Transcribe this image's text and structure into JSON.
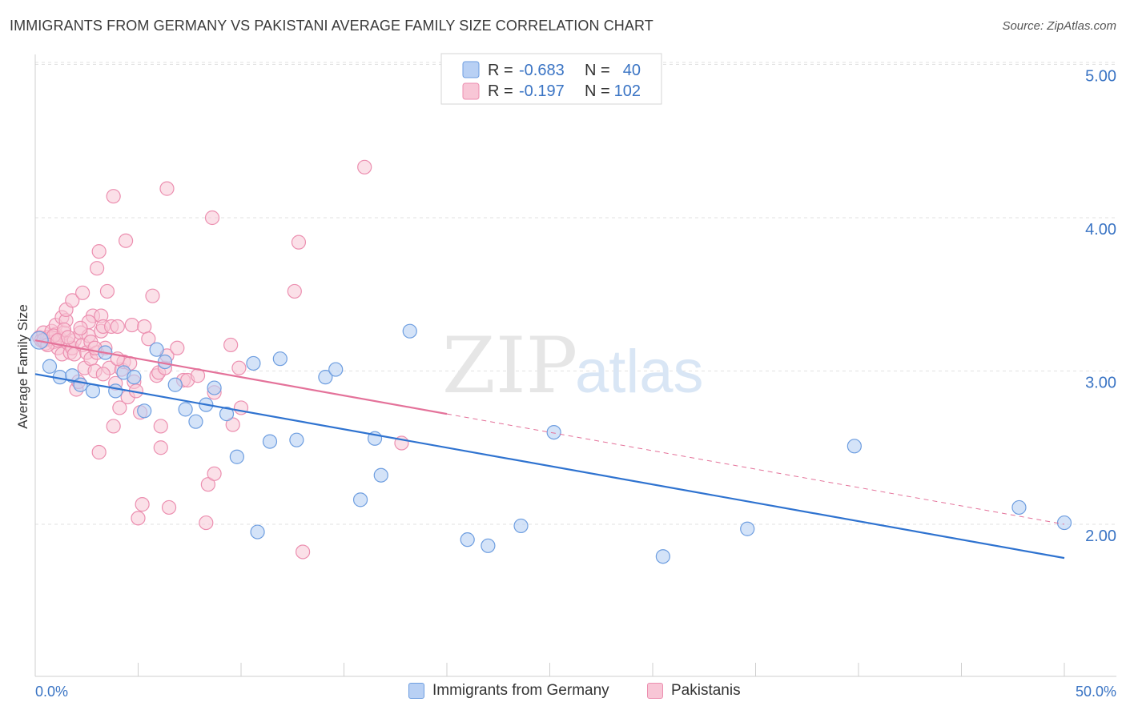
{
  "title": "IMMIGRANTS FROM GERMANY VS PAKISTANI AVERAGE FAMILY SIZE CORRELATION CHART",
  "source": "Source: ZipAtlas.com",
  "watermark": {
    "part1": "ZIP",
    "part2": "atlas"
  },
  "legend": {
    "row1": {
      "r_label": "R =",
      "r_value": "-0.683",
      "n_label": "N =",
      "n_value": "40"
    },
    "row2": {
      "r_label": "R =",
      "r_value": "-0.197",
      "n_label": "N =",
      "n_value": "102"
    }
  },
  "bottom_legend": {
    "item1": "Immigrants from Germany",
    "item2": "Pakistanis"
  },
  "colors": {
    "germany_fill": "#b8d0f4",
    "germany_stroke": "#6e9ee0",
    "germany_line": "#2f73d0",
    "pakistani_fill": "#f8c6d6",
    "pakistani_stroke": "#ec8fb0",
    "pakistani_line": "#e4729a",
    "tick": "#3a74c4"
  },
  "chart_data": {
    "type": "scatter",
    "title": "IMMIGRANTS FROM GERMANY VS PAKISTANI AVERAGE FAMILY SIZE CORRELATION CHART",
    "xlabel": "",
    "ylabel": "Average Family Size",
    "xlim": [
      0,
      50
    ],
    "ylim": [
      1.0,
      5.1
    ],
    "x_tick_labels": [
      "0.0%",
      "50.0%"
    ],
    "y_ticks": [
      2.0,
      3.0,
      4.0,
      5.0
    ],
    "y_tick_labels": [
      "2.00",
      "3.00",
      "4.00",
      "5.00"
    ],
    "grid": true,
    "legend_position": "top-center",
    "series": [
      {
        "name": "Immigrants from Germany",
        "r": -0.683,
        "n": 40,
        "trend": {
          "x": [
            0,
            50
          ],
          "y": [
            2.98,
            1.78
          ]
        },
        "points": [
          [
            0.2,
            3.2
          ],
          [
            0.7,
            3.03
          ],
          [
            1.2,
            2.96
          ],
          [
            1.8,
            2.97
          ],
          [
            2.2,
            2.91
          ],
          [
            2.8,
            2.87
          ],
          [
            3.4,
            3.12
          ],
          [
            3.9,
            2.87
          ],
          [
            4.3,
            2.99
          ],
          [
            4.8,
            2.96
          ],
          [
            5.3,
            2.74
          ],
          [
            5.9,
            3.14
          ],
          [
            6.3,
            3.06
          ],
          [
            6.8,
            2.91
          ],
          [
            7.3,
            2.75
          ],
          [
            7.8,
            2.67
          ],
          [
            8.3,
            2.78
          ],
          [
            8.7,
            2.89
          ],
          [
            9.3,
            2.72
          ],
          [
            9.8,
            2.44
          ],
          [
            10.6,
            3.05
          ],
          [
            10.8,
            1.95
          ],
          [
            11.4,
            2.54
          ],
          [
            11.9,
            3.08
          ],
          [
            12.7,
            2.55
          ],
          [
            14.1,
            2.96
          ],
          [
            14.6,
            3.01
          ],
          [
            15.8,
            2.16
          ],
          [
            16.5,
            2.56
          ],
          [
            16.8,
            2.32
          ],
          [
            18.2,
            3.26
          ],
          [
            21.0,
            1.9
          ],
          [
            22.0,
            1.86
          ],
          [
            23.6,
            1.99
          ],
          [
            25.2,
            2.6
          ],
          [
            30.5,
            1.79
          ],
          [
            34.6,
            1.97
          ],
          [
            39.8,
            2.51
          ],
          [
            47.8,
            2.11
          ],
          [
            50.0,
            2.01
          ]
        ]
      },
      {
        "name": "Pakistanis",
        "r": -0.197,
        "n": 102,
        "trend_solid": {
          "x": [
            0,
            20
          ],
          "y": [
            3.2,
            2.72
          ]
        },
        "trend_dashed": {
          "x": [
            20,
            50
          ],
          "y": [
            2.72,
            2.0
          ]
        },
        "points": [
          [
            0.2,
            3.22
          ],
          [
            0.3,
            3.2
          ],
          [
            0.4,
            3.25
          ],
          [
            0.5,
            3.18
          ],
          [
            0.6,
            3.22
          ],
          [
            0.7,
            3.21
          ],
          [
            0.8,
            3.26
          ],
          [
            0.9,
            3.19
          ],
          [
            1.0,
            3.24
          ],
          [
            1.0,
            3.3
          ],
          [
            1.1,
            3.15
          ],
          [
            1.2,
            3.21
          ],
          [
            1.3,
            3.11
          ],
          [
            1.3,
            3.35
          ],
          [
            1.4,
            3.25
          ],
          [
            1.5,
            3.33
          ],
          [
            1.5,
            3.4
          ],
          [
            1.6,
            3.18
          ],
          [
            1.7,
            3.12
          ],
          [
            1.8,
            3.46
          ],
          [
            1.8,
            3.15
          ],
          [
            1.9,
            3.11
          ],
          [
            1.9,
            3.2
          ],
          [
            2.0,
            2.88
          ],
          [
            2.1,
            2.93
          ],
          [
            2.2,
            3.25
          ],
          [
            2.3,
            3.51
          ],
          [
            2.3,
            3.17
          ],
          [
            2.4,
            3.02
          ],
          [
            2.5,
            3.12
          ],
          [
            2.6,
            3.23
          ],
          [
            2.7,
            3.08
          ],
          [
            2.7,
            3.19
          ],
          [
            2.8,
            3.36
          ],
          [
            2.9,
            3.0
          ],
          [
            3.0,
            3.12
          ],
          [
            3.0,
            3.67
          ],
          [
            3.1,
            3.78
          ],
          [
            3.1,
            2.47
          ],
          [
            3.2,
            3.36
          ],
          [
            3.2,
            3.26
          ],
          [
            3.3,
            3.29
          ],
          [
            3.4,
            3.15
          ],
          [
            3.5,
            3.52
          ],
          [
            3.6,
            3.02
          ],
          [
            3.7,
            3.29
          ],
          [
            3.8,
            4.14
          ],
          [
            3.8,
            2.64
          ],
          [
            3.9,
            2.92
          ],
          [
            4.0,
            3.29
          ],
          [
            4.1,
            2.76
          ],
          [
            4.2,
            3.01
          ],
          [
            4.3,
            3.06
          ],
          [
            4.4,
            3.85
          ],
          [
            4.5,
            2.83
          ],
          [
            4.6,
            3.05
          ],
          [
            4.7,
            3.3
          ],
          [
            4.8,
            2.93
          ],
          [
            4.9,
            2.87
          ],
          [
            5.0,
            2.04
          ],
          [
            5.1,
            2.73
          ],
          [
            5.2,
            2.13
          ],
          [
            5.3,
            3.29
          ],
          [
            5.5,
            3.21
          ],
          [
            5.7,
            3.49
          ],
          [
            5.9,
            2.97
          ],
          [
            6.0,
            2.99
          ],
          [
            6.1,
            2.5
          ],
          [
            6.1,
            2.64
          ],
          [
            6.3,
            3.02
          ],
          [
            6.4,
            3.1
          ],
          [
            6.4,
            4.19
          ],
          [
            6.5,
            2.11
          ],
          [
            6.9,
            3.15
          ],
          [
            7.2,
            2.94
          ],
          [
            7.4,
            2.94
          ],
          [
            7.9,
            2.97
          ],
          [
            8.3,
            2.01
          ],
          [
            8.4,
            2.26
          ],
          [
            8.6,
            4.0
          ],
          [
            8.7,
            2.33
          ],
          [
            8.7,
            2.86
          ],
          [
            9.5,
            3.17
          ],
          [
            9.6,
            2.65
          ],
          [
            9.9,
            3.02
          ],
          [
            10.0,
            2.76
          ],
          [
            12.6,
            3.52
          ],
          [
            12.8,
            3.84
          ],
          [
            13.0,
            1.82
          ],
          [
            16.0,
            4.33
          ],
          [
            17.8,
            2.53
          ],
          [
            0.4,
            3.2
          ],
          [
            0.9,
            3.23
          ],
          [
            1.4,
            3.27
          ],
          [
            2.6,
            3.32
          ],
          [
            3.3,
            2.98
          ],
          [
            4.0,
            3.08
          ],
          [
            0.6,
            3.17
          ],
          [
            1.1,
            3.2
          ],
          [
            1.6,
            3.22
          ],
          [
            2.2,
            3.28
          ],
          [
            2.9,
            3.15
          ]
        ]
      }
    ]
  }
}
